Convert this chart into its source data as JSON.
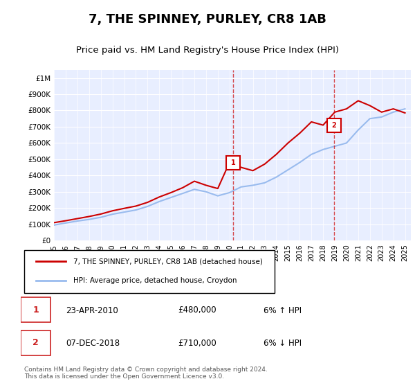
{
  "title": "7, THE SPINNEY, PURLEY, CR8 1AB",
  "subtitle": "Price paid vs. HM Land Registry's House Price Index (HPI)",
  "ylabel_ticks": [
    "£0",
    "£100K",
    "£200K",
    "£300K",
    "£400K",
    "£500K",
    "£600K",
    "£700K",
    "£800K",
    "£900K",
    "£1M"
  ],
  "ytick_vals": [
    0,
    100000,
    200000,
    300000,
    400000,
    500000,
    600000,
    700000,
    800000,
    900000,
    1000000
  ],
  "ylim": [
    0,
    1050000
  ],
  "background_color": "#f0f4ff",
  "plot_bg": "#e8eeff",
  "grid_color": "#ffffff",
  "line1_color": "#cc0000",
  "line2_color": "#99bbee",
  "marker_color": "#cc0000",
  "sale1": {
    "date": 2010.31,
    "price": 480000,
    "label": "1"
  },
  "sale2": {
    "date": 2018.93,
    "price": 710000,
    "label": "2"
  },
  "legend_line1": "7, THE SPINNEY, PURLEY, CR8 1AB (detached house)",
  "legend_line2": "HPI: Average price, detached house, Croydon",
  "note1_num": "1",
  "note1_date": "23-APR-2010",
  "note1_price": "£480,000",
  "note1_hpi": "6% ↑ HPI",
  "note2_num": "2",
  "note2_date": "07-DEC-2018",
  "note2_price": "£710,000",
  "note2_hpi": "6% ↓ HPI",
  "footer": "Contains HM Land Registry data © Crown copyright and database right 2024.\nThis data is licensed under the Open Government Licence v3.0.",
  "hpi_years": [
    1995,
    1996,
    1997,
    1998,
    1999,
    2000,
    2001,
    2002,
    2003,
    2004,
    2005,
    2006,
    2007,
    2008,
    2009,
    2010,
    2011,
    2012,
    2013,
    2014,
    2015,
    2016,
    2017,
    2018,
    2019,
    2020,
    2021,
    2022,
    2023,
    2024,
    2025
  ],
  "hpi_vals": [
    95000,
    108000,
    120000,
    130000,
    143000,
    162000,
    175000,
    188000,
    210000,
    240000,
    265000,
    290000,
    315000,
    300000,
    275000,
    295000,
    330000,
    340000,
    355000,
    390000,
    435000,
    480000,
    530000,
    560000,
    580000,
    600000,
    680000,
    750000,
    760000,
    790000,
    810000
  ],
  "price_years": [
    1995,
    1996,
    1997,
    1998,
    1999,
    2000,
    2001,
    2002,
    2003,
    2004,
    2005,
    2006,
    2007,
    2008,
    2009,
    2010,
    2011,
    2012,
    2013,
    2014,
    2015,
    2016,
    2017,
    2018,
    2019,
    2020,
    2021,
    2022,
    2023,
    2024,
    2025
  ],
  "price_vals": [
    110000,
    122000,
    135000,
    148000,
    163000,
    183000,
    198000,
    212000,
    235000,
    268000,
    295000,
    325000,
    365000,
    340000,
    320000,
    480000,
    450000,
    430000,
    470000,
    530000,
    600000,
    660000,
    730000,
    710000,
    790000,
    810000,
    860000,
    830000,
    790000,
    810000,
    785000
  ]
}
